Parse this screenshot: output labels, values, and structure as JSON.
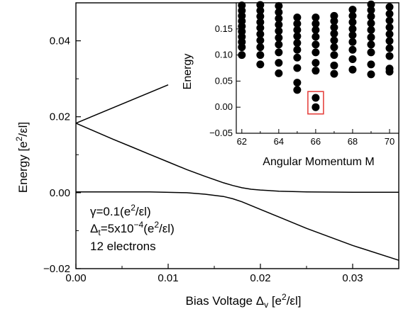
{
  "chart_data": [
    {
      "type": "line",
      "xlabel": "Bias Voltage Δ",
      "xlabel_sub": "v",
      "xlabel_unit": " [e",
      "xlabel_sup": "2",
      "xlabel_unit_end": "/εl]",
      "ylabel": "Energy [e",
      "ylabel_sup": "2",
      "ylabel_end": "/εl]",
      "xlim": [
        0,
        0.035
      ],
      "ylim": [
        -0.02,
        0.05
      ],
      "xticks": [
        "0.00",
        "0.01",
        "0.02",
        "0.03"
      ],
      "yticks": [
        "−0.02",
        "0.00",
        "0.02",
        "0.04"
      ],
      "series": [
        {
          "x": [
            0,
            0.01
          ],
          "y": [
            0.0183,
            0.0284
          ]
        },
        {
          "x": [
            0,
            0.002,
            0.004,
            0.006,
            0.008,
            0.01,
            0.012,
            0.014,
            0.016,
            0.017,
            0.018,
            0.019,
            0.02,
            0.022,
            0.025,
            0.03,
            0.035
          ],
          "y": [
            0.0183,
            0.0162,
            0.0141,
            0.0121,
            0.0101,
            0.0081,
            0.0061,
            0.0043,
            0.0026,
            0.0019,
            0.0013,
            0.0009,
            0.0007,
            0.0004,
            0.0002,
            0.0001,
            0.0001
          ]
        },
        {
          "x": [
            0,
            0.004,
            0.008,
            0.012,
            0.014,
            0.016,
            0.017,
            0.018,
            0.019,
            0.02,
            0.022,
            0.025,
            0.03,
            0.035
          ],
          "y": [
            0.0002,
            0.0002,
            0.0002,
            0.0,
            -0.0004,
            -0.001,
            -0.0016,
            -0.0024,
            -0.0034,
            -0.0044,
            -0.0064,
            -0.0094,
            -0.0139,
            -0.0178
          ]
        }
      ],
      "annotations": {
        "gamma": "γ=0.1(e",
        "gamma_sup": "2",
        "gamma_end": "/εl)",
        "delta_pre": "Δ",
        "delta_sub": "t",
        "delta_mid": "=5x10",
        "delta_sup": "−4",
        "delta_mid2": "(e",
        "delta_sup2": "2",
        "delta_end": "/εl)",
        "electrons": "12 electrons"
      }
    },
    {
      "type": "scatter",
      "xlabel": "Angular Momentum M",
      "ylabel": "Energy",
      "xlim": [
        61.7,
        70.5
      ],
      "ylim": [
        -0.05,
        0.2
      ],
      "xticks": [
        "62",
        "64",
        "66",
        "68",
        "70"
      ],
      "yticks": [
        "−0.05",
        "0.00",
        "0.05",
        "0.10",
        "0.15"
      ],
      "points": [
        {
          "m": 62,
          "e": [
            0.1,
            0.115,
            0.125,
            0.135,
            0.145,
            0.155,
            0.165,
            0.175,
            0.185,
            0.195
          ]
        },
        {
          "m": 63,
          "e": [
            0.082,
            0.1,
            0.115,
            0.128,
            0.14,
            0.152,
            0.163,
            0.174,
            0.185,
            0.196
          ]
        },
        {
          "m": 64,
          "e": [
            0.065,
            0.085,
            0.105,
            0.12,
            0.133,
            0.146,
            0.158,
            0.17,
            0.182,
            0.194
          ]
        },
        {
          "m": 65,
          "e": [
            0.033,
            0.047,
            0.075,
            0.095,
            0.11,
            0.123,
            0.136,
            0.148,
            0.16,
            0.172
          ]
        },
        {
          "m": 66,
          "e": [
            0.0,
            0.018,
            0.07,
            0.085,
            0.105,
            0.12,
            0.135,
            0.148,
            0.16,
            0.172
          ]
        },
        {
          "m": 67,
          "e": [
            0.064,
            0.08,
            0.1,
            0.115,
            0.128,
            0.141,
            0.153,
            0.165,
            0.175
          ]
        },
        {
          "m": 68,
          "e": [
            0.072,
            0.092,
            0.11,
            0.125,
            0.138,
            0.15,
            0.163,
            0.175,
            0.187
          ]
        },
        {
          "m": 69,
          "e": [
            0.063,
            0.082,
            0.105,
            0.12,
            0.134,
            0.148,
            0.161,
            0.174,
            0.186,
            0.197
          ]
        },
        {
          "m": 70,
          "e": [
            0.068,
            0.074,
            0.098,
            0.113,
            0.127,
            0.14,
            0.153,
            0.166,
            0.179,
            0.192
          ]
        }
      ],
      "highlight": {
        "m": 66,
        "e_range": [
          -0.013,
          0.03
        ],
        "color": "#e53935"
      }
    }
  ]
}
